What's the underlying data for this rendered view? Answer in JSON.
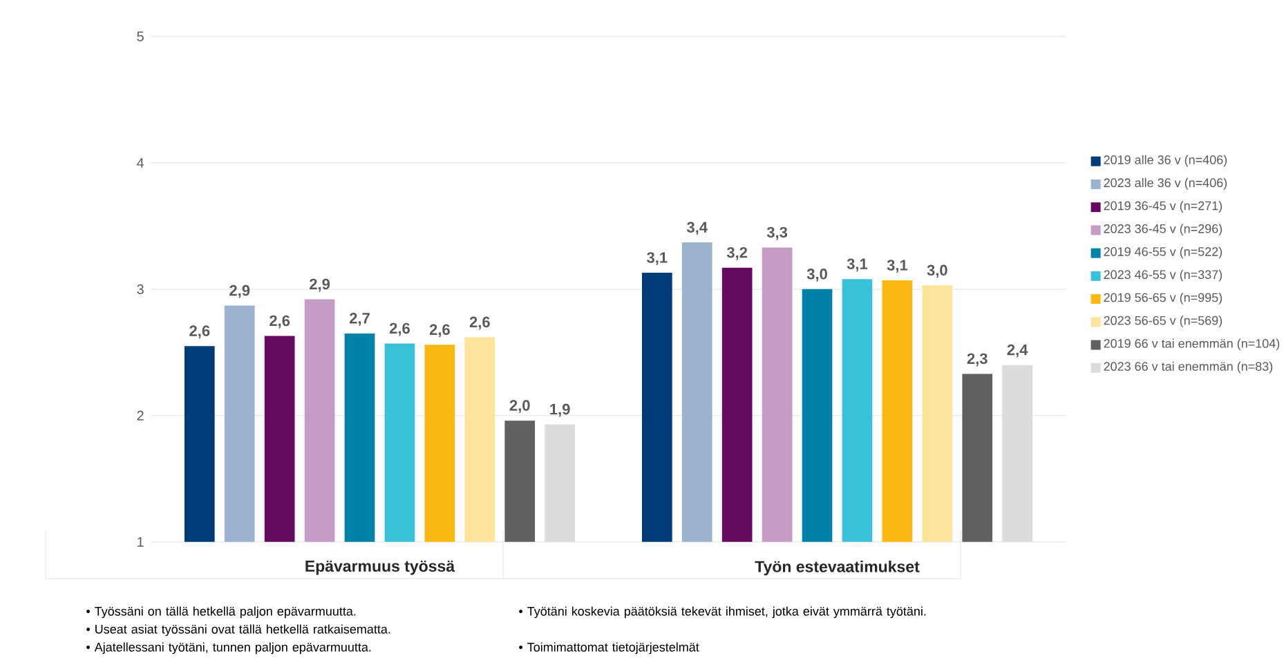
{
  "chart_data": {
    "type": "bar",
    "categories": [
      "Epävarmuus työssä",
      "Työn estevaatimukset"
    ],
    "series": [
      {
        "name": "2019 alle 36 v (n=406)",
        "color": "#003b7a",
        "values": [
          2.55,
          3.13
        ],
        "value_labels": [
          "2,6",
          "3,1"
        ]
      },
      {
        "name": "2023 alle 36 v (n=406)",
        "color": "#9bb3cf",
        "values": [
          2.87,
          3.37
        ],
        "value_labels": [
          "2,9",
          "3,4"
        ]
      },
      {
        "name": "2019 36-45 v (n=271)",
        "color": "#650a5f",
        "values": [
          2.63,
          3.17
        ],
        "value_labels": [
          "2,6",
          "3,2"
        ]
      },
      {
        "name": "2023 36-45 v (n=296)",
        "color": "#c49cc6",
        "values": [
          2.92,
          3.33
        ],
        "value_labels": [
          "2,9",
          "3,3"
        ]
      },
      {
        "name": "2019 46-55 v (n=522)",
        "color": "#0081a8",
        "values": [
          2.65,
          3.0
        ],
        "value_labels": [
          "2,7",
          "3,0"
        ]
      },
      {
        "name": "2023 46-55 v (n=337)",
        "color": "#39c2d7",
        "values": [
          2.57,
          3.08
        ],
        "value_labels": [
          "2,6",
          "3,1"
        ]
      },
      {
        "name": "2019 56-65 v (n=995)",
        "color": "#fdb813",
        "values": [
          2.56,
          3.07
        ],
        "value_labels": [
          "2,6",
          "3,1"
        ]
      },
      {
        "name": "2023 56-65 v (n=569)",
        "color": "#fee49b",
        "values": [
          2.62,
          3.03
        ],
        "value_labels": [
          "2,6",
          "3,0"
        ]
      },
      {
        "name": "2019 66 v tai enemmän (n=104)",
        "color": "#606060",
        "values": [
          1.96,
          2.33
        ],
        "value_labels": [
          "2,0",
          "2,3"
        ]
      },
      {
        "name": "2023 66 v tai enemmän (n=83)",
        "color": "#dcdcdc",
        "values": [
          1.93,
          2.4
        ],
        "value_labels": [
          "1,9",
          "2,4"
        ]
      }
    ],
    "ylim": [
      1,
      5
    ],
    "yticks": [
      1,
      2,
      3,
      4,
      5
    ],
    "grid": "y",
    "legend": "right",
    "annotations": [
      "• Työssäni on tällä hetkellä paljon epävarmuutta.",
      "• Useat asiat työssäni ovat tällä hetkellä ratkaisematta.",
      "• Ajatellessani työtäni, tunnen paljon epävarmuutta.",
      "• Työtäni koskevia päätöksiä tekevät ihmiset, jotka eivät ymmärrä työtäni.",
      "• Toimimattomat tietojärjestelmät"
    ]
  }
}
